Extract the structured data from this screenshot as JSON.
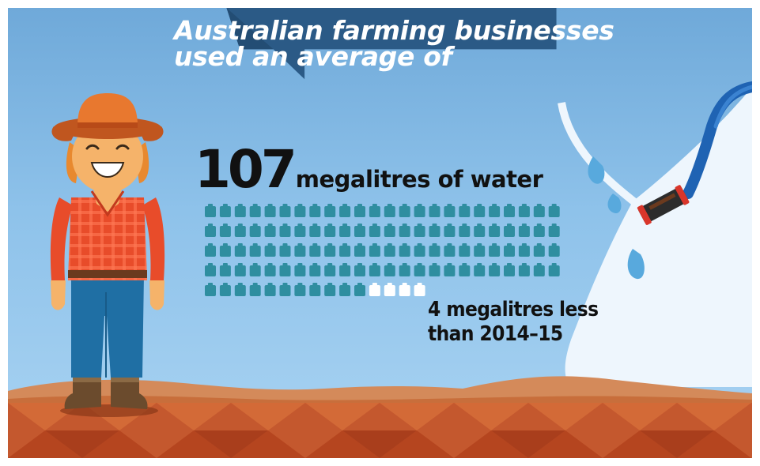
{
  "title": {
    "line1": "Australian farming businesses",
    "line2": "used an average of"
  },
  "headline": {
    "value": "107",
    "unit": "megalitres of water"
  },
  "tank_pictogram": {
    "filled_count": 107,
    "outline_count": 4,
    "filled_color": "#2f8ea0",
    "outline_color": "#ffffff"
  },
  "comparison_note": {
    "line1": "4 megalitres less",
    "line2": "than 2014–15"
  },
  "colors": {
    "banner": "#2b5a86",
    "sky": "#8ec2ea",
    "ground": "#c4582e",
    "hose": "#1f63b3"
  },
  "icons": [
    "farmer-illustration",
    "garden-hose-icon",
    "water-tank-icon",
    "red-desert-ground"
  ]
}
